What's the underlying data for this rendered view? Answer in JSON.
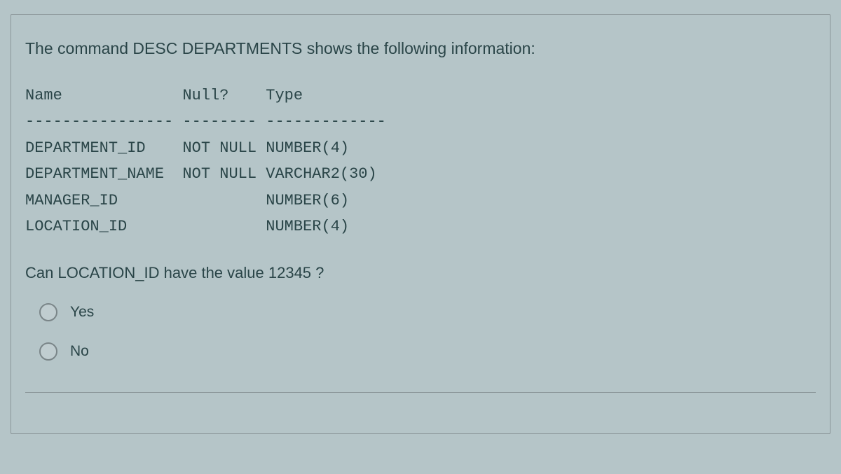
{
  "question": {
    "intro": "The command DESC DEPARTMENTS shows the following information:",
    "headers": {
      "name": "Name",
      "null": "Null?",
      "type": "Type"
    },
    "divider": "---------------- -------- -------------",
    "rows": [
      {
        "name": "DEPARTMENT_ID",
        "null": "NOT NULL",
        "type": "NUMBER(4)"
      },
      {
        "name": "DEPARTMENT_NAME",
        "null": "NOT NULL",
        "type": "VARCHAR2(30)"
      },
      {
        "name": "MANAGER_ID",
        "null": "",
        "type": "NUMBER(6)"
      },
      {
        "name": "LOCATION_ID",
        "null": "",
        "type": "NUMBER(4)"
      }
    ],
    "sub_question": "Can LOCATION_ID have the value 12345 ?",
    "options": [
      {
        "label": "Yes"
      },
      {
        "label": "No"
      }
    ]
  },
  "colors": {
    "background": "#b5c5c8",
    "text": "#2a4548",
    "border": "#8a9598"
  }
}
